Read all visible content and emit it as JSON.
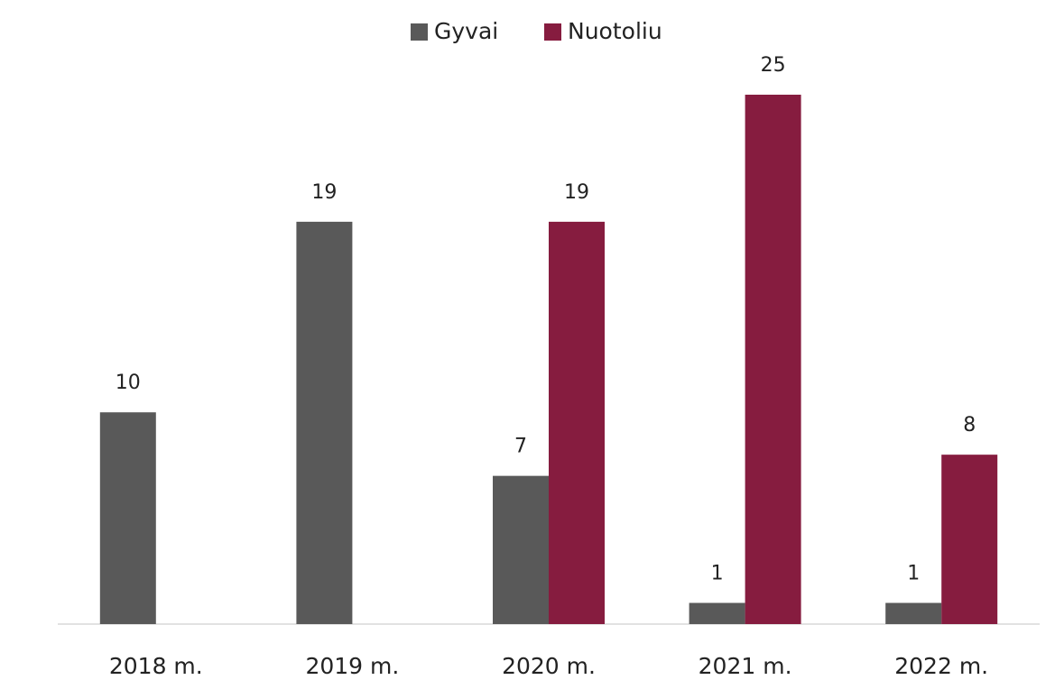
{
  "chart_data": {
    "type": "bar",
    "categories": [
      "2018 m.",
      "2019 m.",
      "2020 m.",
      "2021 m.",
      "2022 m."
    ],
    "series": [
      {
        "name": "Gyvai",
        "color": "#595959",
        "values": [
          10,
          19,
          7,
          1,
          1
        ]
      },
      {
        "name": "Nuotoliu",
        "color": "#861c3f",
        "values": [
          null,
          null,
          19,
          25,
          8
        ]
      }
    ],
    "legend": "top"
  }
}
